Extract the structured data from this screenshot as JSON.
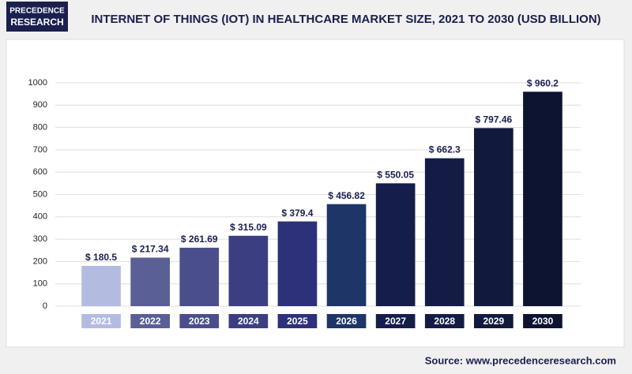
{
  "logo": [
    "PRECEDENCE",
    "RESEARCH"
  ],
  "source": "Source: www.precedenceresearch.com",
  "chart_data": {
    "type": "bar",
    "title": "INTERNET OF THINGS (IOT) IN HEALTHCARE MARKET SIZE, 2021 TO 2030 (USD BILLION)",
    "categories": [
      "2021",
      "2022",
      "2023",
      "2024",
      "2025",
      "2026",
      "2027",
      "2028",
      "2029",
      "2030"
    ],
    "values": [
      180.5,
      217.34,
      261.69,
      315.09,
      379.4,
      456.82,
      550.05,
      662.3,
      797.46,
      960.2
    ],
    "value_labels": [
      "$ 180.5",
      "$ 217.34",
      "$ 261.69",
      "$ 315.09",
      "$ 379.4",
      "$ 456.82",
      "$ 550.05",
      "$ 662.3",
      "$ 797.46",
      "$ 960.2"
    ],
    "colors": [
      "#b3bce0",
      "#5a5f96",
      "#4a4f8c",
      "#3b3f82",
      "#2d317a",
      "#1d3567",
      "#151d4b",
      "#141c45",
      "#111a3d",
      "#0d1431"
    ],
    "ylim": [
      0,
      1000
    ],
    "yticks": [
      0,
      100,
      200,
      300,
      400,
      500,
      600,
      700,
      800,
      900,
      1000
    ],
    "grid": true
  }
}
